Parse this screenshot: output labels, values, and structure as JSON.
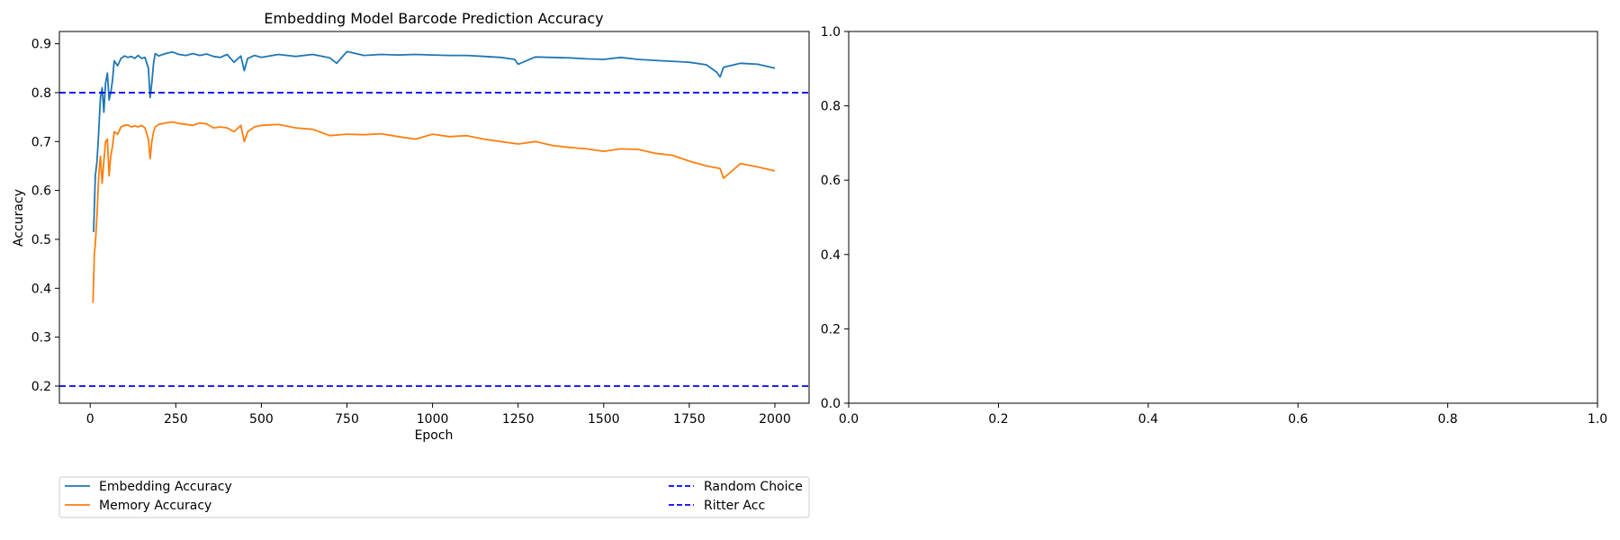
{
  "chart_data": [
    {
      "type": "line",
      "title": "Embedding Model Barcode Prediction Accuracy",
      "xlabel": "Epoch",
      "ylabel": "Accuracy",
      "xlim": [
        -90,
        2100
      ],
      "ylim": [
        0.165,
        0.925
      ],
      "xticks": [
        0,
        250,
        500,
        750,
        1000,
        1250,
        1500,
        1750,
        2000
      ],
      "yticks": [
        0.2,
        0.3,
        0.4,
        0.5,
        0.6,
        0.7,
        0.8,
        0.9
      ],
      "grid": false,
      "legend_position": "below",
      "series": [
        {
          "name": "Embedding Accuracy",
          "color": "#1f77b4",
          "style": "solid",
          "x": [
            10,
            15,
            20,
            25,
            30,
            35,
            40,
            45,
            50,
            55,
            60,
            65,
            70,
            80,
            90,
            100,
            110,
            120,
            130,
            140,
            150,
            160,
            170,
            175,
            180,
            185,
            190,
            200,
            220,
            240,
            260,
            280,
            300,
            320,
            340,
            360,
            380,
            400,
            420,
            440,
            450,
            460,
            480,
            500,
            550,
            600,
            650,
            700,
            720,
            750,
            800,
            850,
            900,
            950,
            1000,
            1050,
            1100,
            1150,
            1200,
            1240,
            1250,
            1300,
            1350,
            1400,
            1450,
            1500,
            1550,
            1600,
            1650,
            1700,
            1750,
            1800,
            1830,
            1840,
            1850,
            1900,
            1950,
            2000
          ],
          "y": [
            0.515,
            0.63,
            0.66,
            0.72,
            0.79,
            0.81,
            0.76,
            0.82,
            0.84,
            0.785,
            0.8,
            0.825,
            0.865,
            0.855,
            0.87,
            0.875,
            0.872,
            0.874,
            0.87,
            0.876,
            0.87,
            0.872,
            0.85,
            0.79,
            0.82,
            0.86,
            0.88,
            0.875,
            0.88,
            0.883,
            0.878,
            0.876,
            0.88,
            0.876,
            0.879,
            0.874,
            0.872,
            0.878,
            0.862,
            0.875,
            0.845,
            0.87,
            0.876,
            0.872,
            0.878,
            0.874,
            0.878,
            0.871,
            0.86,
            0.884,
            0.876,
            0.878,
            0.877,
            0.878,
            0.877,
            0.876,
            0.876,
            0.874,
            0.872,
            0.868,
            0.858,
            0.873,
            0.872,
            0.871,
            0.869,
            0.868,
            0.872,
            0.868,
            0.866,
            0.864,
            0.862,
            0.857,
            0.842,
            0.832,
            0.852,
            0.86,
            0.858,
            0.85
          ]
        },
        {
          "name": "Memory Accuracy",
          "color": "#ff7f0e",
          "style": "solid",
          "x": [
            8,
            12,
            15,
            20,
            25,
            30,
            35,
            40,
            45,
            50,
            55,
            60,
            65,
            70,
            80,
            90,
            100,
            110,
            120,
            130,
            140,
            150,
            160,
            170,
            175,
            180,
            185,
            190,
            200,
            220,
            240,
            260,
            280,
            300,
            320,
            340,
            360,
            380,
            400,
            420,
            440,
            450,
            460,
            480,
            500,
            550,
            600,
            650,
            700,
            750,
            800,
            850,
            900,
            950,
            1000,
            1050,
            1100,
            1150,
            1200,
            1250,
            1300,
            1350,
            1400,
            1450,
            1500,
            1550,
            1600,
            1650,
            1700,
            1750,
            1800,
            1840,
            1850,
            1900,
            1950,
            2000
          ],
          "y": [
            0.37,
            0.47,
            0.49,
            0.55,
            0.63,
            0.67,
            0.615,
            0.66,
            0.7,
            0.705,
            0.63,
            0.67,
            0.69,
            0.72,
            0.715,
            0.73,
            0.733,
            0.734,
            0.73,
            0.732,
            0.73,
            0.733,
            0.728,
            0.705,
            0.665,
            0.7,
            0.72,
            0.73,
            0.735,
            0.738,
            0.74,
            0.737,
            0.735,
            0.733,
            0.738,
            0.736,
            0.728,
            0.73,
            0.728,
            0.72,
            0.733,
            0.7,
            0.72,
            0.73,
            0.733,
            0.735,
            0.728,
            0.725,
            0.712,
            0.715,
            0.714,
            0.716,
            0.71,
            0.705,
            0.715,
            0.71,
            0.712,
            0.705,
            0.7,
            0.695,
            0.7,
            0.692,
            0.688,
            0.685,
            0.68,
            0.685,
            0.684,
            0.676,
            0.672,
            0.66,
            0.65,
            0.645,
            0.625,
            0.655,
            0.648,
            0.64
          ]
        },
        {
          "name": "Random Choice",
          "color": "#0000ff",
          "style": "dashed",
          "hline": 0.2
        },
        {
          "name": "Ritter Acc",
          "color": "#0000ff",
          "style": "dashed",
          "hline": 0.8
        }
      ]
    },
    {
      "type": "line",
      "title": "",
      "xlabel": "",
      "ylabel": "",
      "xlim": [
        0,
        1
      ],
      "ylim": [
        0,
        1
      ],
      "xticks": [
        0.0,
        0.2,
        0.4,
        0.6,
        0.8,
        1.0
      ],
      "yticks": [
        0.0,
        0.2,
        0.4,
        0.6,
        0.8,
        1.0
      ],
      "grid": false,
      "series": []
    }
  ]
}
